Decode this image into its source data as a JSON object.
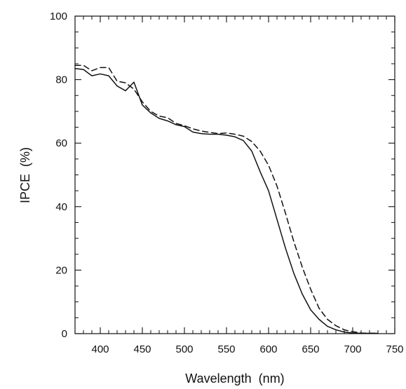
{
  "chart_data": {
    "type": "line",
    "title": "",
    "xlabel": "Wavelength  (nm)",
    "ylabel": "IPCE  (%)",
    "xlim": [
      370,
      750
    ],
    "ylim": [
      0,
      100
    ],
    "x_ticks": [
      400,
      450,
      500,
      550,
      600,
      650,
      700,
      750
    ],
    "y_ticks": [
      0,
      20,
      40,
      60,
      80,
      100
    ],
    "x_minor_step": 10,
    "y_minor_step": 5,
    "grid": false,
    "legend": "none",
    "series": [
      {
        "style": "solid",
        "color": "#111111",
        "points": [
          [
            370,
            83.5
          ],
          [
            380,
            83.2
          ],
          [
            390,
            81.2
          ],
          [
            400,
            81.8
          ],
          [
            410,
            81.2
          ],
          [
            420,
            78.0
          ],
          [
            430,
            76.5
          ],
          [
            440,
            79.2
          ],
          [
            450,
            72.0
          ],
          [
            460,
            69.5
          ],
          [
            470,
            67.8
          ],
          [
            480,
            67.0
          ],
          [
            490,
            65.8
          ],
          [
            500,
            65.2
          ],
          [
            510,
            63.5
          ],
          [
            520,
            63.0
          ],
          [
            530,
            62.8
          ],
          [
            540,
            62.8
          ],
          [
            550,
            62.5
          ],
          [
            560,
            62.0
          ],
          [
            570,
            60.8
          ],
          [
            580,
            57.5
          ],
          [
            590,
            51.0
          ],
          [
            600,
            45.0
          ],
          [
            610,
            36.0
          ],
          [
            620,
            27.0
          ],
          [
            630,
            19.0
          ],
          [
            640,
            12.5
          ],
          [
            650,
            7.5
          ],
          [
            660,
            4.5
          ],
          [
            670,
            2.3
          ],
          [
            680,
            1.2
          ],
          [
            690,
            0.5
          ],
          [
            700,
            0.2
          ],
          [
            710,
            0.1
          ],
          [
            720,
            0.1
          ],
          [
            730,
            0.1
          ]
        ]
      },
      {
        "style": "dashed",
        "color": "#111111",
        "points": [
          [
            370,
            84.5
          ],
          [
            380,
            84.5
          ],
          [
            390,
            82.8
          ],
          [
            400,
            83.8
          ],
          [
            410,
            83.8
          ],
          [
            420,
            79.5
          ],
          [
            430,
            79.0
          ],
          [
            440,
            77.0
          ],
          [
            450,
            73.0
          ],
          [
            460,
            70.0
          ],
          [
            470,
            68.5
          ],
          [
            480,
            68.0
          ],
          [
            490,
            66.2
          ],
          [
            500,
            65.5
          ],
          [
            510,
            64.5
          ],
          [
            520,
            63.8
          ],
          [
            530,
            63.4
          ],
          [
            540,
            63.0
          ],
          [
            550,
            63.2
          ],
          [
            560,
            62.8
          ],
          [
            570,
            62.2
          ],
          [
            580,
            60.5
          ],
          [
            590,
            57.5
          ],
          [
            600,
            53.0
          ],
          [
            610,
            46.5
          ],
          [
            620,
            38.0
          ],
          [
            630,
            29.0
          ],
          [
            640,
            21.0
          ],
          [
            650,
            14.0
          ],
          [
            660,
            8.0
          ],
          [
            670,
            4.5
          ],
          [
            680,
            2.5
          ],
          [
            690,
            1.2
          ],
          [
            700,
            0.6
          ],
          [
            710,
            0.2
          ],
          [
            720,
            0.1
          ],
          [
            730,
            0.1
          ]
        ]
      }
    ]
  }
}
